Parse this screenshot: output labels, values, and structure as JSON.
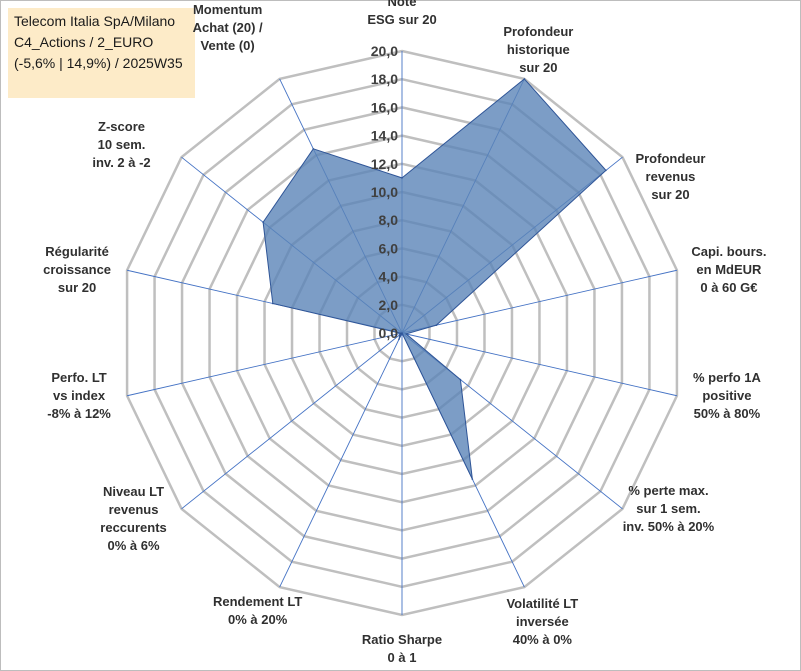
{
  "title_box": {
    "lines": [
      "Telecom Italia SpA/Milano",
      "C4_Actions / 2_EURO",
      "(-5,6% | 14,9%) / 2025W35"
    ]
  },
  "chart_data": {
    "type": "radar",
    "rmax": 20,
    "rmin": 0,
    "tick_step": 2,
    "tick_labels": [
      "0,0",
      "2,0",
      "4,0",
      "6,0",
      "8,0",
      "10,0",
      "12,0",
      "14,0",
      "16,0",
      "18,0",
      "20,0"
    ],
    "axes": [
      {
        "label": [
          "Note",
          "ESG sur 20"
        ],
        "value": 11.0
      },
      {
        "label": [
          "Profondeur",
          "historique",
          "sur 20"
        ],
        "value": 20.0
      },
      {
        "label": [
          "Profondeur",
          "revenus",
          "sur 20"
        ],
        "value": 18.5
      },
      {
        "label": [
          "Capi. bours.",
          "en MdEUR",
          "0 à 60 G€"
        ],
        "value": 2.5
      },
      {
        "label": [
          "% perfo 1A",
          "positive",
          "50% à 80%"
        ],
        "value": 0.3
      },
      {
        "label": [
          "% perte max.",
          "sur 1 sem.",
          "inv. 50% à 20%"
        ],
        "value": 5.3
      },
      {
        "label": [
          "Volatilité LT",
          "inversée",
          "40% à 0%"
        ],
        "value": 11.5
      },
      {
        "label": [
          "Ratio Sharpe",
          "0 à 1"
        ],
        "value": 0.0
      },
      {
        "label": [
          "Rendement LT",
          "0% à 20%"
        ],
        "value": 0.5
      },
      {
        "label": [
          "Niveau LT",
          "revenus",
          "reccurents",
          "0% à 6%"
        ],
        "value": 0.2
      },
      {
        "label": [
          "Perfo. LT",
          "vs index",
          "-8% à 12%"
        ],
        "value": 0.1
      },
      {
        "label": [
          "Régularité",
          "croissance",
          "sur 20"
        ],
        "value": 9.4
      },
      {
        "label": [
          "Z-score",
          "10 sem.",
          "inv. 2 à -2"
        ],
        "value": 12.6
      },
      {
        "label": [
          "Momentum",
          "Achat (20) /",
          "Vente (0)"
        ],
        "value": 14.5
      }
    ],
    "colors": {
      "fill": "#5b84b8",
      "fill_opacity": 0.8,
      "stroke": "#2f5597",
      "grid": "#bfbfbf",
      "spoke": "#4472c4"
    },
    "grid": true,
    "legend": "none"
  }
}
